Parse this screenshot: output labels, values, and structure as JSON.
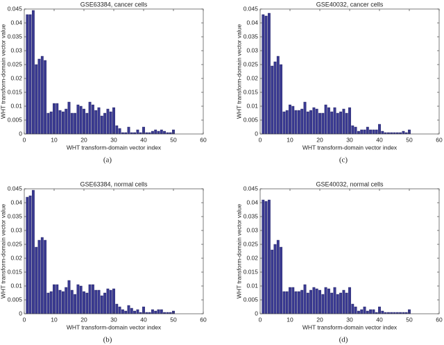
{
  "chart_data": [
    {
      "type": "bar",
      "title": "GSE63384, cancer cells",
      "caption": "(a)",
      "xlabel": "WHT transform-domain vector index",
      "ylabel": "WHT transform-domain vector value",
      "color": "#3a3a92",
      "x": [
        1,
        2,
        3,
        4,
        5,
        6,
        7,
        8,
        9,
        10,
        11,
        12,
        13,
        14,
        15,
        16,
        17,
        18,
        19,
        20,
        21,
        22,
        23,
        24,
        25,
        26,
        27,
        28,
        29,
        30,
        31,
        32,
        33,
        34,
        35,
        36,
        37,
        38,
        39,
        40,
        41,
        42,
        43,
        44,
        45,
        46,
        47,
        48,
        49,
        50
      ],
      "values": [
        0.043,
        0.043,
        0.0445,
        0.025,
        0.027,
        0.028,
        0.0265,
        0.0075,
        0.008,
        0.011,
        0.011,
        0.0085,
        0.008,
        0.009,
        0.0115,
        0.0075,
        0.0075,
        0.0105,
        0.01,
        0.009,
        0.0075,
        0.0115,
        0.0105,
        0.0085,
        0.0095,
        0.0065,
        0.0075,
        0.009,
        0.008,
        0.0095,
        0.003,
        0.002,
        0.0005,
        0.0005,
        0.0025,
        0.0005,
        0.0005,
        0.0015,
        0.0005,
        0.0025,
        0.0005,
        0.0005,
        0.001,
        0.0015,
        0.001,
        0.0015,
        0.001,
        0.0005,
        0.0005,
        0.0015
      ],
      "xlim": [
        0,
        60
      ],
      "xticks": [
        0,
        10,
        20,
        30,
        40,
        50,
        60
      ],
      "ylim": [
        0,
        0.045
      ],
      "yticks": [
        0,
        0.005,
        0.01,
        0.015,
        0.02,
        0.025,
        0.03,
        0.035,
        0.04,
        0.045
      ]
    },
    {
      "type": "bar",
      "title": "GSE63384, normal cells",
      "caption": "(b)",
      "xlabel": "WHT transform-domain vector index",
      "ylabel": "WHT transform-domain vector value",
      "color": "#3a3a92",
      "x": [
        1,
        2,
        3,
        4,
        5,
        6,
        7,
        8,
        9,
        10,
        11,
        12,
        13,
        14,
        15,
        16,
        17,
        18,
        19,
        20,
        21,
        22,
        23,
        24,
        25,
        26,
        27,
        28,
        29,
        30,
        31,
        32,
        33,
        34,
        35,
        36,
        37,
        38,
        39,
        40,
        41,
        42,
        43,
        44,
        45,
        46,
        47,
        48,
        49,
        50
      ],
      "values": [
        0.042,
        0.0425,
        0.0445,
        0.024,
        0.0265,
        0.0275,
        0.0265,
        0.0075,
        0.008,
        0.0105,
        0.0105,
        0.0085,
        0.008,
        0.0095,
        0.012,
        0.0085,
        0.007,
        0.0105,
        0.01,
        0.008,
        0.0075,
        0.0105,
        0.0105,
        0.0085,
        0.0085,
        0.0065,
        0.0075,
        0.009,
        0.0085,
        0.009,
        0.0035,
        0.0025,
        0.0015,
        0.001,
        0.003,
        0.002,
        0.001,
        0.0015,
        0.0005,
        0.0025,
        0.0005,
        0.0005,
        0.0015,
        0.001,
        0.0015,
        0.0015,
        0.0005,
        0.0005,
        0.0005,
        0.001
      ],
      "xlim": [
        0,
        60
      ],
      "xticks": [
        0,
        10,
        20,
        30,
        40,
        50,
        60
      ],
      "ylim": [
        0,
        0.045
      ],
      "yticks": [
        0,
        0.005,
        0.01,
        0.015,
        0.02,
        0.025,
        0.03,
        0.035,
        0.04,
        0.045
      ]
    },
    {
      "type": "bar",
      "title": "GSE40032, cancer cells",
      "caption": "(c)",
      "xlabel": "WHT transform-domain vector index",
      "ylabel": "WHT transform-domain vector value",
      "color": "#3a3a92",
      "x": [
        1,
        2,
        3,
        4,
        5,
        6,
        7,
        8,
        9,
        10,
        11,
        12,
        13,
        14,
        15,
        16,
        17,
        18,
        19,
        20,
        21,
        22,
        23,
        24,
        25,
        26,
        27,
        28,
        29,
        30,
        31,
        32,
        33,
        34,
        35,
        36,
        37,
        38,
        39,
        40,
        41,
        42,
        43,
        44,
        45,
        46,
        47,
        48,
        49,
        50
      ],
      "values": [
        0.043,
        0.0425,
        0.0435,
        0.0245,
        0.026,
        0.028,
        0.025,
        0.008,
        0.0085,
        0.0105,
        0.01,
        0.0085,
        0.0085,
        0.009,
        0.0115,
        0.008,
        0.0085,
        0.0095,
        0.009,
        0.0075,
        0.0075,
        0.0105,
        0.0095,
        0.008,
        0.0095,
        0.0075,
        0.008,
        0.009,
        0.0075,
        0.0095,
        0.003,
        0.0025,
        0.001,
        0.0015,
        0.0015,
        0.0025,
        0.0015,
        0.0015,
        0.0015,
        0.0035,
        0.001,
        0.0005,
        0.0005,
        0.0005,
        0.0005,
        0.0005,
        0.0005,
        0.001,
        0.0005,
        0.0015
      ],
      "xlim": [
        0,
        60
      ],
      "xticks": [
        0,
        10,
        20,
        30,
        40,
        50,
        60
      ],
      "ylim": [
        0,
        0.045
      ],
      "yticks": [
        0,
        0.005,
        0.01,
        0.015,
        0.02,
        0.025,
        0.03,
        0.035,
        0.04,
        0.045
      ]
    },
    {
      "type": "bar",
      "title": "GSE40032, normal cells",
      "caption": "(d)",
      "xlabel": "WHT transform-domain vector index",
      "ylabel": "WHT transform-domain vector value",
      "color": "#3a3a92",
      "x": [
        1,
        2,
        3,
        4,
        5,
        6,
        7,
        8,
        9,
        10,
        11,
        12,
        13,
        14,
        15,
        16,
        17,
        18,
        19,
        20,
        21,
        22,
        23,
        24,
        25,
        26,
        27,
        28,
        29,
        30,
        31,
        32,
        33,
        34,
        35,
        36,
        37,
        38,
        39,
        40,
        41,
        42,
        43,
        44,
        45,
        46,
        47,
        48,
        49,
        50
      ],
      "values": [
        0.041,
        0.0405,
        0.041,
        0.023,
        0.025,
        0.0265,
        0.024,
        0.008,
        0.008,
        0.0095,
        0.0095,
        0.008,
        0.008,
        0.0085,
        0.0105,
        0.0075,
        0.0085,
        0.0095,
        0.009,
        0.0085,
        0.007,
        0.0095,
        0.009,
        0.0075,
        0.0095,
        0.007,
        0.0075,
        0.0085,
        0.0075,
        0.0095,
        0.0035,
        0.0025,
        0.001,
        0.0015,
        0.0025,
        0.001,
        0.0015,
        0.0015,
        0.0005,
        0.0025,
        0.001,
        0.0005,
        0.0005,
        0.0005,
        0.0005,
        0.0005,
        0.0005,
        0.0005,
        0.0005,
        0.0015
      ],
      "xlim": [
        0,
        60
      ],
      "xticks": [
        0,
        10,
        20,
        30,
        40,
        50,
        60
      ],
      "ylim": [
        0,
        0.045
      ],
      "yticks": [
        0,
        0.005,
        0.01,
        0.015,
        0.02,
        0.025,
        0.03,
        0.035,
        0.04,
        0.045
      ]
    }
  ]
}
